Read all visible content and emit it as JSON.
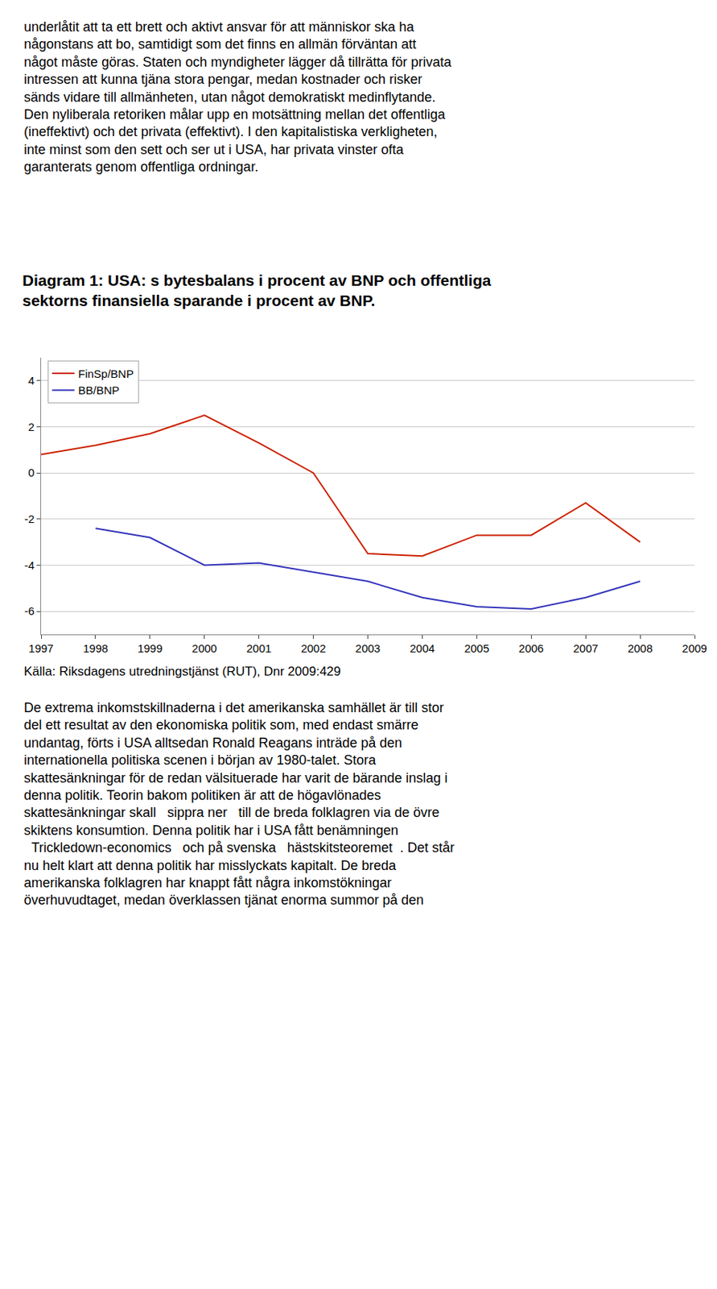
{
  "chart_data": {
    "type": "line",
    "title": "Diagram 1: USA: s bytesbalans i procent av BNP och offentliga\nsektorns finansiella sparande i procent av BNP.",
    "series": [
      {
        "name": "FinSp/BNP",
        "color": "#cc2200",
        "x": [
          1997,
          1998,
          1999,
          2000,
          2001,
          2002,
          2003,
          2004,
          2005,
          2006,
          2007,
          2008
        ],
        "values": [
          0.8,
          1.2,
          1.7,
          2.5,
          1.3,
          0.0,
          -3.5,
          -3.6,
          -2.7,
          -2.7,
          -1.3,
          -3.0
        ]
      },
      {
        "name": "BB/BNP",
        "color": "#3333bb",
        "x": [
          1998,
          1999,
          2000,
          2001,
          2002,
          2003,
          2004,
          2005,
          2006,
          2007,
          2008
        ],
        "values": [
          -2.4,
          -2.8,
          -4.0,
          -3.9,
          -4.3,
          -4.7,
          -5.4,
          -5.8,
          -5.9,
          -5.4,
          -4.7
        ]
      }
    ],
    "xlim": [
      1997,
      2009
    ],
    "xticks": [
      1997,
      1998,
      1999,
      2000,
      2001,
      2002,
      2003,
      2004,
      2005,
      2006,
      2007,
      2008,
      2009
    ],
    "ylim": [
      -7,
      5
    ],
    "yticks": [
      -6,
      -4,
      -2,
      0,
      2,
      4
    ],
    "grid": true,
    "legend": "upper left",
    "annotations": [
      "underlåtit att ta ett brett och aktivt ansvar för att människor ska ha\nnågonstans att bo, samtidigt som det finns en allmän förväntan att\nnågot måste göras. Staten och myndigheter lägger då tillrätta för privata\nintressen att kunna tjäna stora pengar, medan kostnader och risker\nsänds vidare till allmänheten, utan något demokratiskt medinflytande.\nDen nyliberala retoriken målar upp en motsättning mellan det offentliga\n(ineffektivt) och det privata (effektivt). I den kapitalistiska verkligheten,\ninte minst som den sett och ser ut i USA, har privata vinster ofta\ngaranterats genom offentliga ordningar.",
      "Källa: Riksdagens utredningstjänst (RUT), Dnr 2009:429",
      "De extrema inkomstskillnaderna i det amerikanska samhället är till stor\ndel ett resultat av den ekonomiska politik som, med endast smärre\nundantag, förts i USA alltsedan Ronald Reagans inträde på den\ninternationella politiska scenen i början av 1980-talet. Stora\nskattesänkningar för de redan välsituerade har varit de bärande inslag i\ndenna politik. Teorin bakom politiken är att de högavlönades\nskattesänkningar skall   sippra ner   till de breda folklagren via de övre\nskiktens konsumtion. Denna politik har i USA fått benämningen\n  Trickledown-economics   och på svenska   hästskitsteoremet  . Det står\nnu helt klart att denna politik har misslyckats kapitalt. De breda\namerikanska folklagren har knappt fått några inkomstökningar\növerhuvudtaget, medan överklassen tjänat enorma summor på den"
    ]
  }
}
